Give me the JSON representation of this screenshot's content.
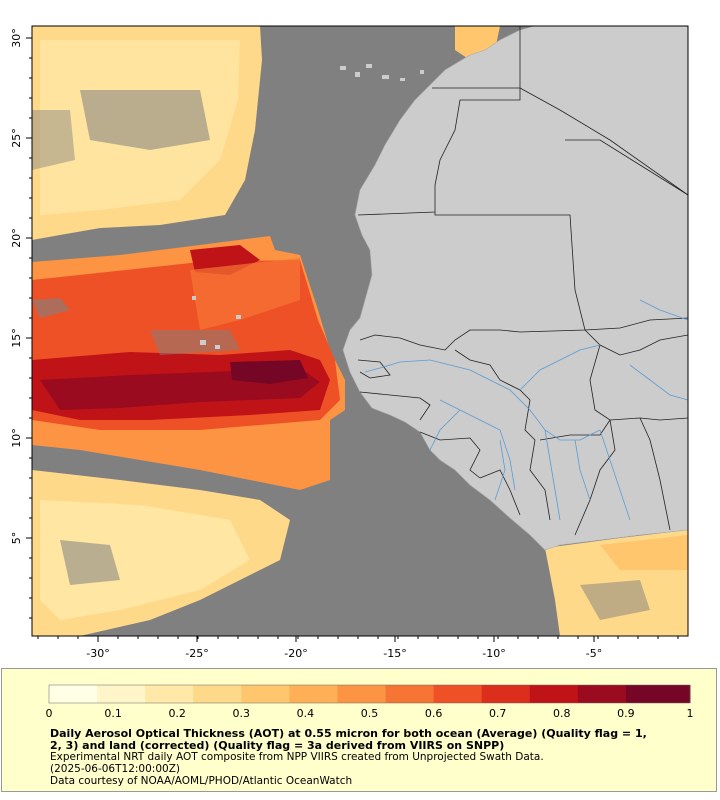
{
  "map": {
    "x_ticks": [
      "-30°",
      "-25°",
      "-20°",
      "-15°",
      "-10°",
      "-5°"
    ],
    "y_ticks": [
      "30°",
      "25°",
      "20°",
      "15°",
      "10°",
      "5°"
    ],
    "colors": {
      "ocean_no_data": "#808080",
      "land": "#cccccc",
      "border": "#222222",
      "river": "#5b9bd5"
    }
  },
  "legend": {
    "tick_labels": [
      "0",
      "0.1",
      "0.2",
      "0.3",
      "0.4",
      "0.5",
      "0.6",
      "0.7",
      "0.8",
      "0.9",
      "1"
    ],
    "palette": [
      "#ffffe6",
      "#fff5c8",
      "#ffe8a8",
      "#ffd98a",
      "#ffc66e",
      "#ffb056",
      "#fd9443",
      "#f77534",
      "#ee5126",
      "#dc2e1c",
      "#c01318",
      "#9a0b1f",
      "#750626"
    ]
  },
  "caption": {
    "line1": "Daily Aerosol Optical Thickness (AOT) at 0.55 micron for both ocean (Average) (Quality flag = 1,",
    "line2": "2, 3) and land (corrected) (Quality flag = 3a derived from VIIRS on SNPP)",
    "line3": "Experimental NRT daily AOT composite from NPP VIIRS created from Unprojected Swath Data.",
    "line4": "(2025-06-06T12:00:00Z)",
    "line5": "Data courtesy of NOAA/AOML/PHOD/Atlantic OceanWatch"
  }
}
